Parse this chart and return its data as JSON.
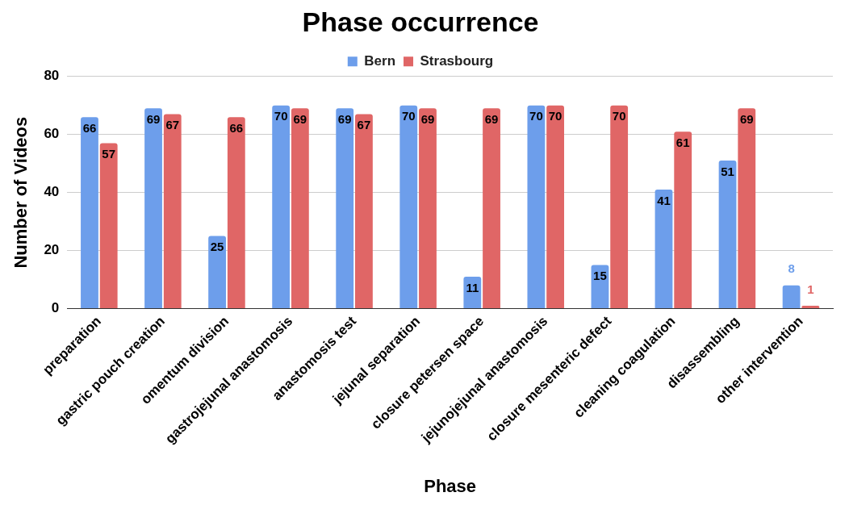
{
  "chart_data": {
    "type": "bar",
    "title": "Phase occurrence",
    "xlabel": "Phase",
    "ylabel": "Number of Videos",
    "categories": [
      "preparation",
      "gastric pouch creation",
      "omentum division",
      "gastrojejunal anastomosis",
      "anastomosis test",
      "jejunal separation",
      "closure petersen space",
      "jejunojejunal anastomosis",
      "closure mesenteric defect",
      "cleaning coagulation",
      "disassembling",
      "other intervention"
    ],
    "series": [
      {
        "name": "Bern",
        "color": "#6d9eeb",
        "values": [
          66,
          69,
          25,
          70,
          69,
          70,
          11,
          70,
          15,
          41,
          51,
          8
        ]
      },
      {
        "name": "Strasbourg",
        "color": "#e06666",
        "values": [
          57,
          67,
          66,
          69,
          67,
          69,
          69,
          70,
          70,
          61,
          69,
          1
        ]
      }
    ],
    "ylim": [
      0,
      80
    ],
    "yticks": [
      0,
      20,
      40,
      60,
      80
    ],
    "grid": "y",
    "legend": "top",
    "data_labels": true
  }
}
